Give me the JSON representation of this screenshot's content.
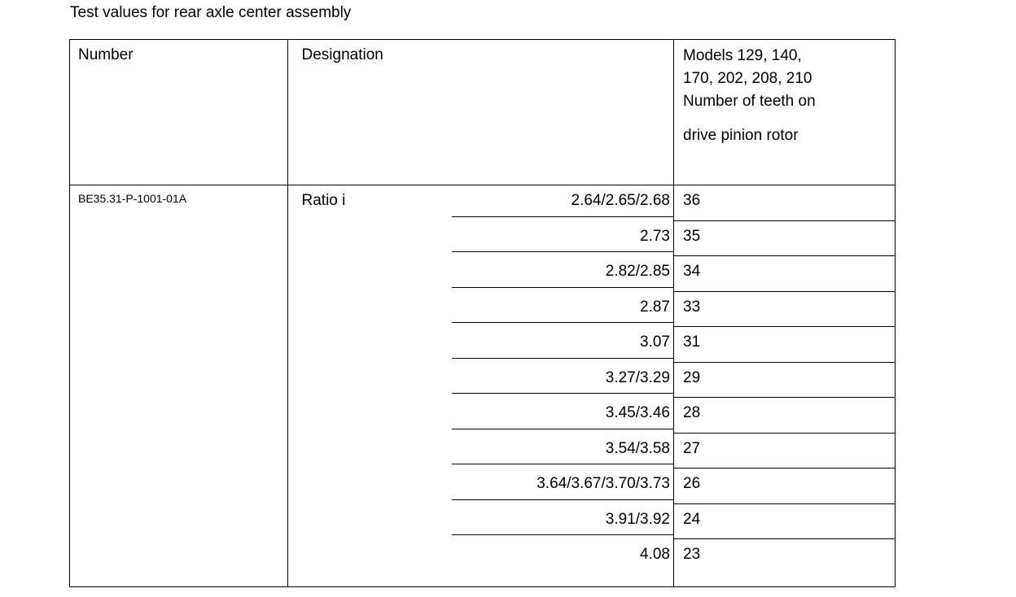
{
  "page": {
    "title": "Test values for rear axle center assembly"
  },
  "colors": {
    "background": "#ffffff",
    "text": "#000000",
    "border": "#000000"
  },
  "table": {
    "headers": {
      "number": "Number",
      "designation": "Designation",
      "models_lines": [
        "Models 129, 140,",
        "170, 202, 208, 210",
        "Number of teeth on",
        "drive pinion rotor"
      ]
    },
    "body": {
      "number_value": "BE35.31-P-1001-01A",
      "designation_label": "Ratio i",
      "rows": [
        {
          "ratio": "2.64/2.65/2.68",
          "teeth": "36"
        },
        {
          "ratio": "2.73",
          "teeth": "35"
        },
        {
          "ratio": "2.82/2.85",
          "teeth": "34"
        },
        {
          "ratio": "2.87",
          "teeth": "33"
        },
        {
          "ratio": "3.07",
          "teeth": "31"
        },
        {
          "ratio": "3.27/3.29",
          "teeth": "29"
        },
        {
          "ratio": "3.45/3.46",
          "teeth": "28"
        },
        {
          "ratio": "3.54/3.58",
          "teeth": "27"
        },
        {
          "ratio": "3.64/3.67/3.70/3.73",
          "teeth": "26"
        },
        {
          "ratio": "3.91/3.92",
          "teeth": "24"
        },
        {
          "ratio": "4.08",
          "teeth": "23"
        }
      ]
    }
  }
}
